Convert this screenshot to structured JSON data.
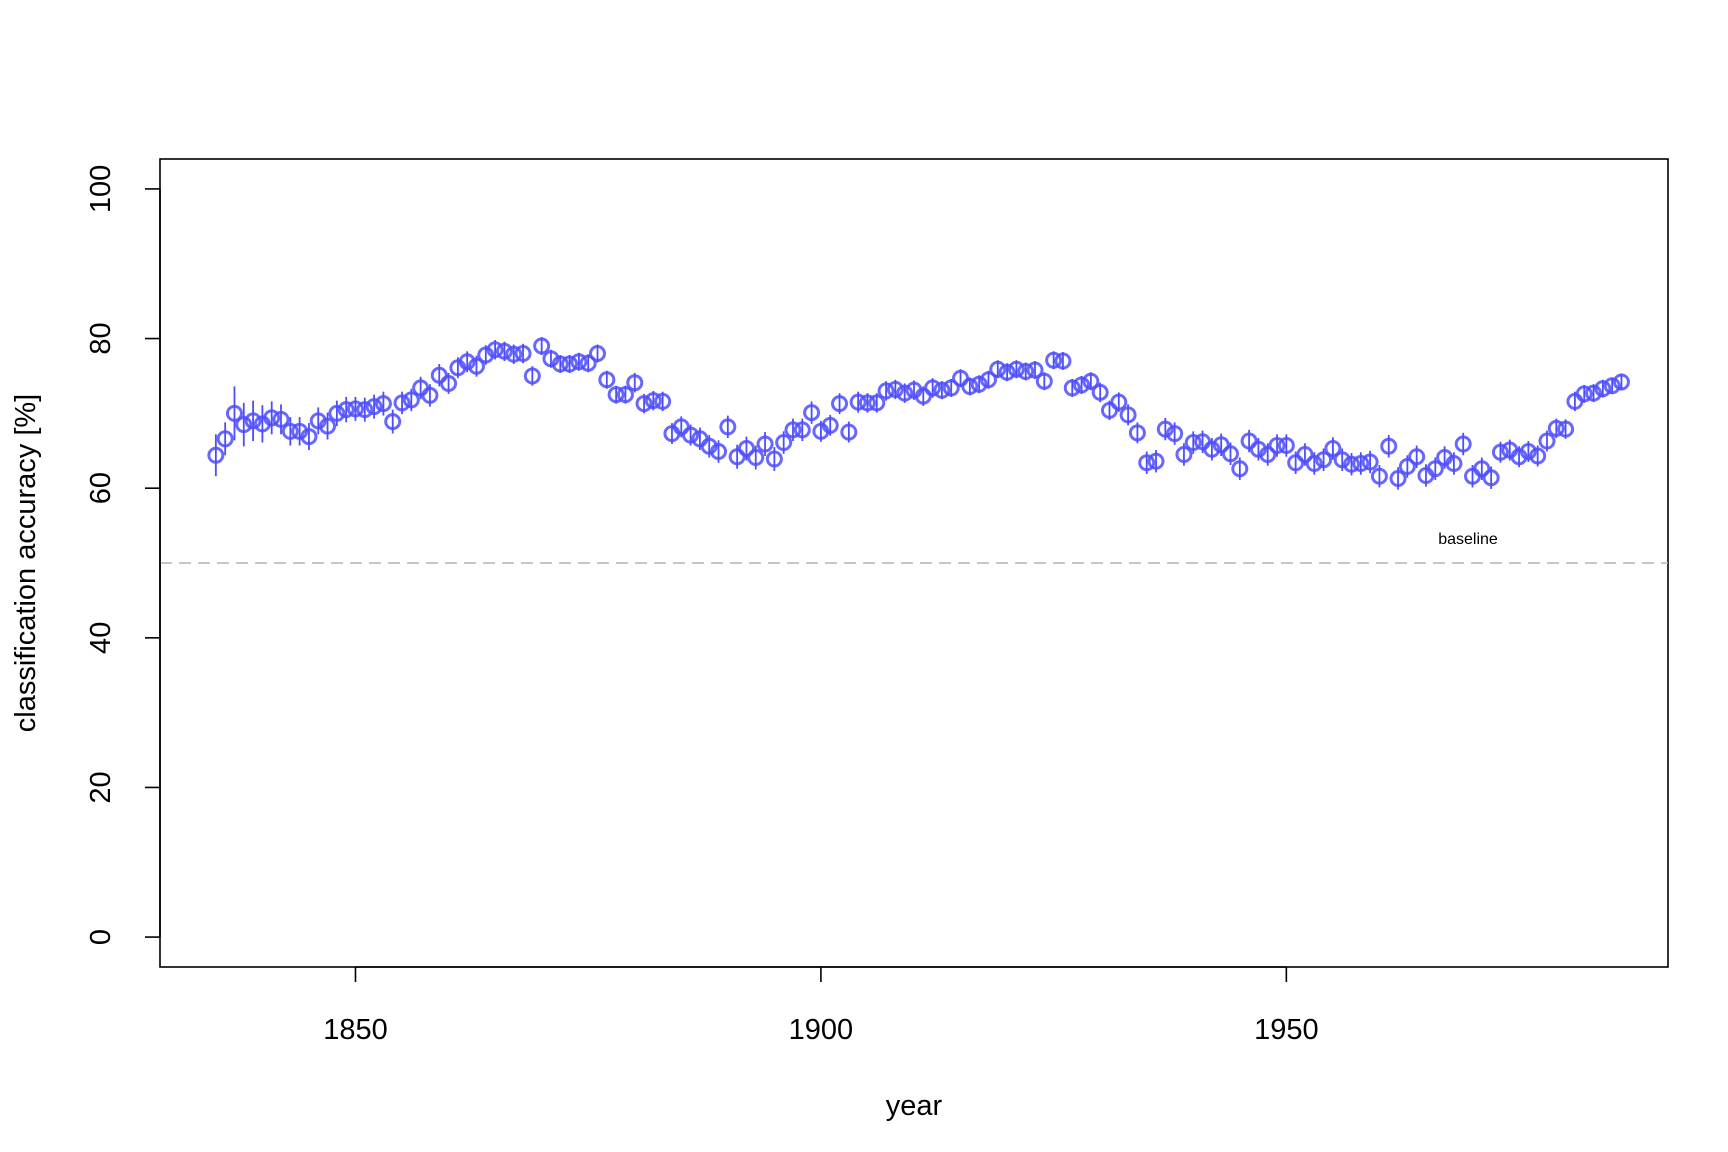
{
  "chart_data": {
    "type": "scatter",
    "title": "",
    "xlabel": "year",
    "ylabel": "classification accuracy [%]",
    "xlim": [
      1829,
      1991
    ],
    "ylim": [
      -4,
      104
    ],
    "xticks": [
      1850,
      1900,
      1950
    ],
    "yticks": [
      0,
      20,
      40,
      60,
      80,
      100
    ],
    "grid": false,
    "legend": "none",
    "marker": "open circle with vertical error bar",
    "point_color": "#4d4dff",
    "baseline": {
      "y": 50,
      "label": "baseline",
      "color": "#b3b3b3",
      "style": "dashed"
    },
    "series": [
      {
        "x": [
          1835,
          1836,
          1837,
          1838,
          1839,
          1840,
          1841,
          1842,
          1843,
          1844,
          1845,
          1846,
          1847,
          1848,
          1849,
          1850,
          1851,
          1852,
          1853,
          1854,
          1855,
          1856,
          1857,
          1858,
          1859,
          1860,
          1861,
          1862,
          1863,
          1864,
          1865,
          1866,
          1867,
          1868,
          1869,
          1870,
          1871,
          1872,
          1873,
          1874,
          1875,
          1876,
          1877,
          1878,
          1879,
          1880,
          1881,
          1882,
          1883,
          1884,
          1885,
          1886,
          1887,
          1888,
          1889,
          1890,
          1891,
          1892,
          1893,
          1894,
          1895,
          1896,
          1897,
          1898,
          1899,
          1900,
          1901,
          1902,
          1903,
          1904,
          1905,
          1906,
          1907,
          1908,
          1909,
          1910,
          1911,
          1912,
          1913,
          1914,
          1915,
          1916,
          1917,
          1918,
          1919,
          1920,
          1921,
          1922,
          1923,
          1924,
          1925,
          1926,
          1927,
          1928,
          1929,
          1930,
          1931,
          1932,
          1933,
          1934,
          1935,
          1936,
          1937,
          1938,
          1939,
          1940,
          1941,
          1942,
          1943,
          1944,
          1945,
          1946,
          1947,
          1948,
          1949,
          1950,
          1951,
          1952,
          1953,
          1954,
          1955,
          1956,
          1957,
          1958,
          1959,
          1960,
          1961,
          1962,
          1963,
          1964,
          1965,
          1966,
          1967,
          1968,
          1969,
          1970,
          1971,
          1972,
          1973,
          1974,
          1975,
          1976,
          1977,
          1978,
          1979,
          1980,
          1981,
          1982,
          1983,
          1984,
          1985,
          1986
        ],
        "y": [
          64.4,
          66.6,
          70.0,
          68.5,
          69.0,
          68.6,
          69.4,
          69.2,
          67.6,
          67.6,
          66.9,
          69.0,
          68.3,
          70.0,
          70.5,
          70.6,
          70.5,
          70.9,
          71.3,
          68.9,
          71.4,
          71.8,
          73.4,
          72.4,
          75.1,
          74.0,
          76.1,
          76.9,
          76.3,
          77.8,
          78.5,
          78.3,
          77.9,
          78.0,
          75.0,
          79.0,
          77.3,
          76.6,
          76.6,
          76.9,
          76.7,
          78.0,
          74.5,
          72.5,
          72.5,
          74.1,
          71.3,
          71.7,
          71.6,
          67.3,
          68.2,
          67.1,
          66.6,
          65.6,
          64.9,
          68.2,
          64.2,
          65.3,
          64.1,
          65.9,
          63.9,
          66.1,
          67.8,
          67.8,
          70.1,
          67.6,
          68.4,
          71.3,
          67.5,
          71.5,
          71.4,
          71.4,
          73.0,
          73.2,
          72.7,
          73.1,
          72.3,
          73.4,
          73.1,
          73.4,
          74.7,
          73.6,
          73.9,
          74.5,
          75.9,
          75.5,
          75.9,
          75.6,
          75.8,
          74.3,
          77.1,
          77.0,
          73.4,
          73.8,
          74.3,
          72.8,
          70.4,
          71.5,
          69.8,
          67.4,
          63.4,
          63.6,
          67.9,
          67.3,
          64.5,
          66.1,
          66.2,
          65.2,
          65.8,
          64.6,
          62.6,
          66.3,
          65.2,
          64.5,
          65.7,
          65.7,
          63.4,
          64.5,
          63.3,
          63.8,
          65.3,
          63.8,
          63.2,
          63.3,
          63.5,
          61.6,
          65.6,
          61.3,
          62.9,
          64.2,
          61.7,
          62.6,
          64.1,
          63.3,
          65.9,
          61.6,
          62.6,
          61.4,
          64.8,
          65.1,
          64.2,
          64.9,
          64.3,
          66.3,
          68.0,
          67.9,
          71.6,
          72.6,
          72.7,
          73.3,
          73.7,
          74.2
        ],
        "error": [
          2.8,
          2.2,
          3.6,
          2.9,
          2.7,
          2.5,
          2.2,
          2.0,
          1.9,
          1.9,
          1.8,
          1.8,
          1.8,
          1.7,
          1.7,
          1.6,
          1.6,
          1.6,
          1.6,
          1.6,
          1.5,
          1.5,
          1.5,
          1.5,
          1.5,
          1.4,
          1.4,
          1.4,
          1.4,
          1.3,
          1.3,
          1.3,
          1.3,
          1.3,
          1.3,
          1.2,
          1.2,
          1.2,
          1.2,
          1.2,
          1.2,
          1.2,
          1.2,
          1.2,
          1.2,
          1.3,
          1.3,
          1.3,
          1.3,
          1.4,
          1.4,
          1.4,
          1.5,
          1.5,
          1.5,
          1.5,
          1.6,
          1.6,
          1.6,
          1.6,
          1.6,
          1.5,
          1.5,
          1.5,
          1.5,
          1.4,
          1.4,
          1.4,
          1.4,
          1.4,
          1.3,
          1.3,
          1.3,
          1.3,
          1.3,
          1.3,
          1.3,
          1.3,
          1.2,
          1.2,
          1.2,
          1.2,
          1.2,
          1.2,
          1.2,
          1.2,
          1.2,
          1.2,
          1.2,
          1.2,
          1.2,
          1.2,
          1.2,
          1.2,
          1.2,
          1.3,
          1.3,
          1.3,
          1.4,
          1.4,
          1.5,
          1.5,
          1.5,
          1.5,
          1.5,
          1.5,
          1.5,
          1.5,
          1.5,
          1.5,
          1.5,
          1.5,
          1.5,
          1.5,
          1.5,
          1.5,
          1.5,
          1.5,
          1.5,
          1.5,
          1.5,
          1.5,
          1.5,
          1.5,
          1.5,
          1.5,
          1.5,
          1.5,
          1.5,
          1.5,
          1.5,
          1.5,
          1.5,
          1.5,
          1.5,
          1.5,
          1.5,
          1.5,
          1.4,
          1.4,
          1.4,
          1.4,
          1.4,
          1.4,
          1.3,
          1.3,
          1.3,
          1.2,
          1.2,
          1.2,
          1.1,
          1.1
        ]
      }
    ]
  }
}
